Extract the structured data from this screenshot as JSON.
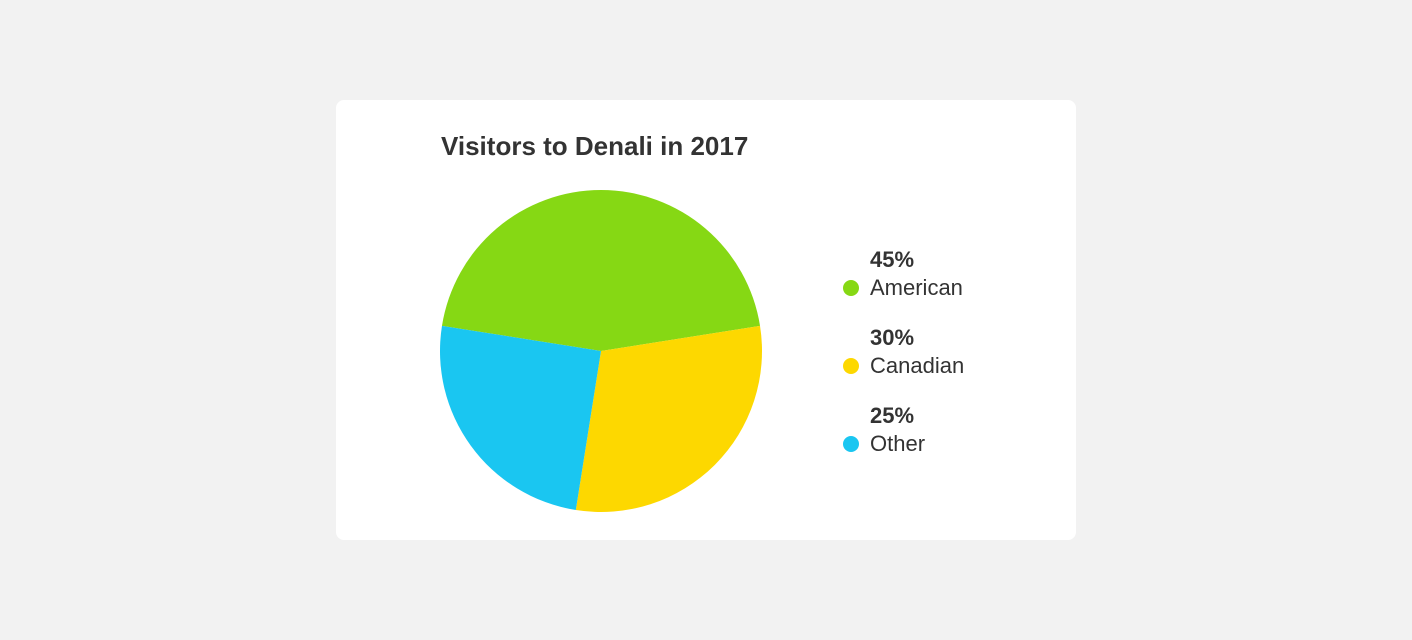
{
  "chart_data": {
    "type": "pie",
    "title": "Visitors to Denali in 2017",
    "legend_position": "right",
    "slices": [
      {
        "label": "American",
        "value": 45,
        "value_label": "45%",
        "color": "#86d814"
      },
      {
        "label": "Canadian",
        "value": 30,
        "value_label": "30%",
        "color": "#fdd800"
      },
      {
        "label": "Other",
        "value": 25,
        "value_label": "25%",
        "color": "#1ac6f1"
      }
    ]
  }
}
